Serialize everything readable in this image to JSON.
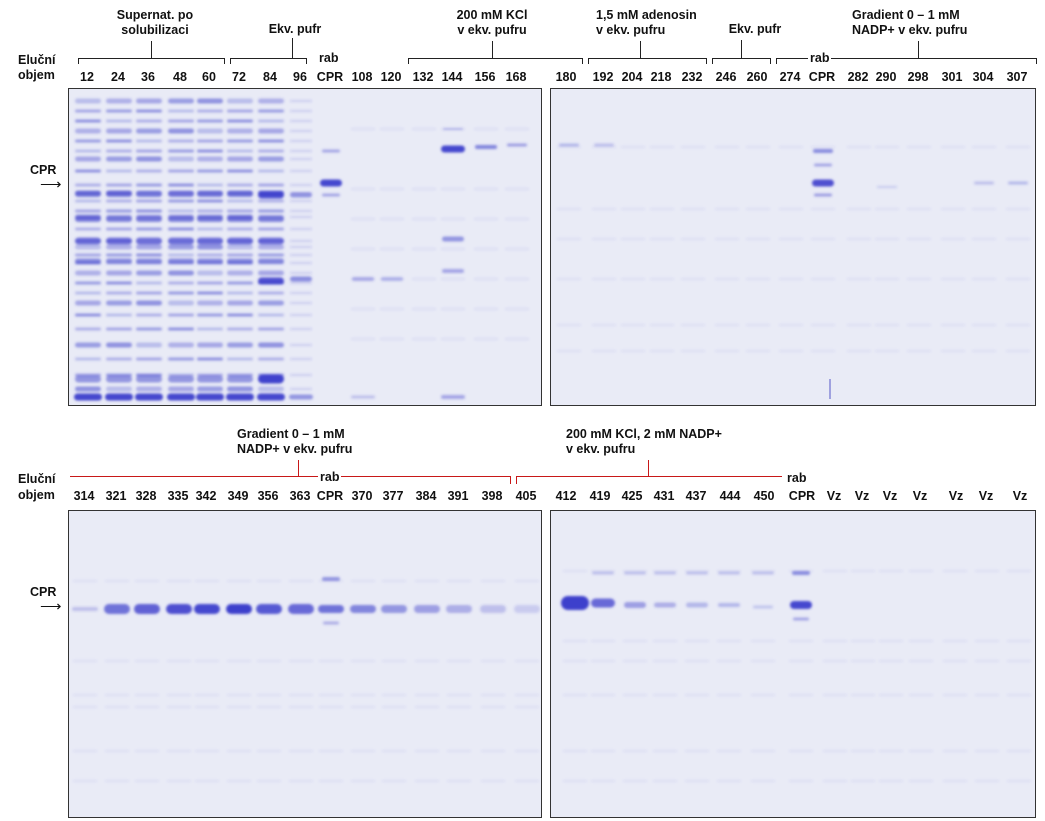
{
  "row1": {
    "elution_label": [
      "Eluční",
      "objem"
    ],
    "groups": [
      {
        "text": [
          "Supernat. po",
          "solubilizaci"
        ]
      },
      {
        "text": [
          "Ekv. pufr"
        ]
      },
      {
        "text": [
          "200 mM KCl",
          "v ekv. pufru"
        ]
      },
      {
        "text": [
          "1,5 mM adenosin",
          "v ekv. pufru"
        ]
      },
      {
        "text": [
          "Ekv. pufr"
        ]
      },
      {
        "text": [
          "Gradient 0 – 1 mM",
          "NADP+ v ekv. pufru"
        ]
      }
    ],
    "rab_labels": [
      "rab",
      "rab"
    ],
    "lanes_left": [
      "12",
      "24",
      "36",
      "48",
      "60",
      "72",
      "84",
      "96",
      "CPR",
      "108",
      "120",
      "132",
      "144",
      "156",
      "168",
      "180"
    ],
    "lanes_right": [
      "192",
      "204",
      "218",
      "232",
      "246",
      "260",
      "274",
      "CPR",
      "282",
      "290",
      "298",
      "301",
      "304",
      "307"
    ],
    "cpr_marker": "CPR"
  },
  "row2": {
    "elution_label": [
      "Eluční",
      "objem"
    ],
    "groups": [
      {
        "text": [
          "Gradient 0 – 1 mM",
          "NADP+ v ekv. pufru"
        ]
      },
      {
        "text": [
          "200 mM KCl, 2 mM NADP+",
          "v ekv. pufru"
        ]
      }
    ],
    "rab_labels": [
      "rab",
      "rab"
    ],
    "lanes_left": [
      "314",
      "321",
      "328",
      "335",
      "342",
      "349",
      "356",
      "363",
      "CPR",
      "370",
      "377",
      "384",
      "391",
      "398",
      "405"
    ],
    "lanes_right": [
      "412",
      "419",
      "425",
      "431",
      "437",
      "444",
      "450",
      "CPR",
      "Vz",
      "Vz",
      "Vz",
      "Vz",
      "Vz",
      "Vz",
      "Vz"
    ],
    "cpr_marker": "CPR"
  },
  "colors": {
    "gel_bg": "#e9ebf6",
    "band": "#3d3fcc",
    "bracket_red": "#c81818"
  }
}
